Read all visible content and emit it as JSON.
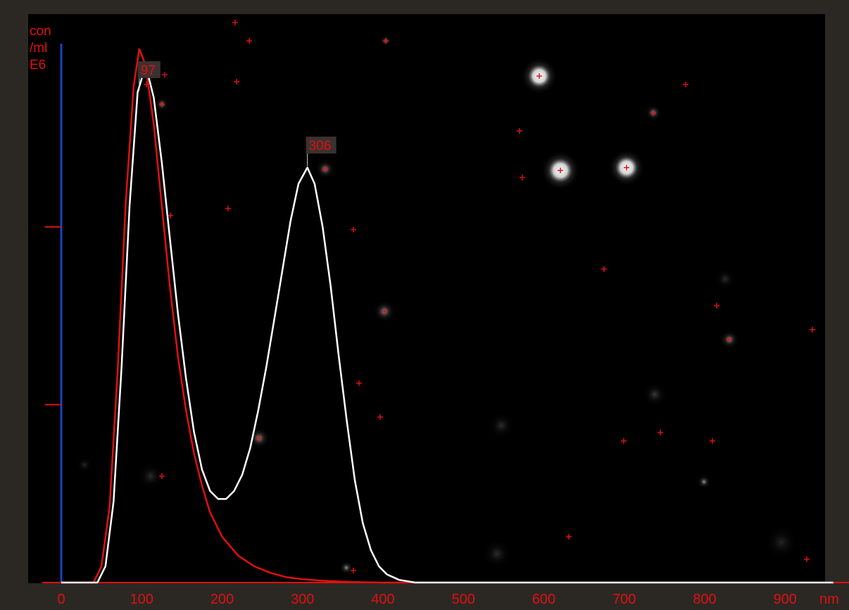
{
  "chart_data": {
    "type": "line",
    "title": "",
    "ylabel": [
      "con",
      "/ml",
      "E6"
    ],
    "xlabel": "nm",
    "xlim": [
      0,
      950
    ],
    "ylim": [
      0,
      1.0
    ],
    "grid": false,
    "x_ticks": [
      0,
      100,
      200,
      300,
      400,
      500,
      600,
      700,
      800,
      900
    ],
    "x_tick_labels": [
      "0",
      "100",
      "200",
      "300",
      "400",
      "500",
      "600",
      "700",
      "800",
      "900"
    ],
    "y_ticks": [
      0.33,
      0.66
    ],
    "series": [
      {
        "color": "#e01010",
        "x": [
          0,
          40,
          50,
          60,
          70,
          80,
          90,
          97,
          105,
          115,
          125,
          135,
          145,
          155,
          165,
          175,
          185,
          200,
          220,
          240,
          260,
          280,
          300,
          330,
          360,
          400,
          450
        ],
        "y": [
          0,
          0,
          0.03,
          0.14,
          0.39,
          0.7,
          0.92,
          0.99,
          0.96,
          0.85,
          0.7,
          0.55,
          0.42,
          0.32,
          0.24,
          0.18,
          0.13,
          0.085,
          0.05,
          0.03,
          0.018,
          0.01,
          0.006,
          0.003,
          0.001,
          0,
          0
        ]
      },
      {
        "color": "#ffffff",
        "x": [
          0,
          45,
          55,
          65,
          75,
          85,
          95,
          105,
          115,
          125,
          135,
          145,
          155,
          165,
          175,
          185,
          195,
          205,
          215,
          225,
          235,
          245,
          255,
          265,
          275,
          285,
          295,
          306,
          315,
          325,
          335,
          345,
          355,
          365,
          375,
          385,
          395,
          405,
          420,
          440,
          460,
          960
        ],
        "y": [
          0,
          0,
          0.03,
          0.15,
          0.4,
          0.7,
          0.91,
          0.96,
          0.9,
          0.78,
          0.64,
          0.5,
          0.38,
          0.28,
          0.21,
          0.17,
          0.155,
          0.155,
          0.17,
          0.2,
          0.25,
          0.32,
          0.4,
          0.49,
          0.58,
          0.67,
          0.74,
          0.77,
          0.74,
          0.66,
          0.55,
          0.42,
          0.3,
          0.19,
          0.11,
          0.06,
          0.03,
          0.015,
          0.005,
          0,
          0,
          0
        ]
      }
    ],
    "peak_labels": [
      {
        "x": 97,
        "text": "97"
      },
      {
        "x": 306,
        "text": "306"
      }
    ],
    "colors": {
      "background": "#000000",
      "frame": "#2b2824",
      "axis_y": "#2040c0",
      "axis_x": "#e01010",
      "text": "#e01010",
      "peak_label_bg": "#3a3230"
    }
  }
}
